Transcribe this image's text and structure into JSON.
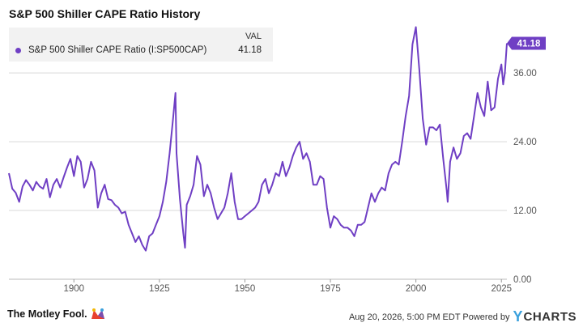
{
  "title": "S&P 500 Shiller CAPE Ratio History",
  "legend": {
    "val_header": "VAL",
    "series_name": "S&P 500 Shiller CAPE Ratio (I:SP500CAP)",
    "value": "41.18"
  },
  "footer": {
    "brand": "The Motley Fool.",
    "timestamp": "Aug 20, 2026, 5:00 PM EDT Powered by",
    "ycharts_y": "Y",
    "ycharts_text": "CHARTS"
  },
  "colors": {
    "line": "#6f3fc4",
    "grid": "#d9d9d9",
    "axis_text": "#555555"
  },
  "chart_data": {
    "type": "line",
    "title": "S&P 500 Shiller CAPE Ratio History",
    "xlim": [
      1881,
      2026.6
    ],
    "ylim": [
      0,
      44.5
    ],
    "xticks": [
      1900,
      1925,
      1950,
      1975,
      2000,
      2025
    ],
    "yticks": [
      0,
      12,
      24,
      36
    ],
    "ytick_labels": [
      "0.00",
      "12.00",
      "24.00",
      "36.00"
    ],
    "last_value_label": "41.18",
    "grid": "horizontal",
    "series": [
      {
        "name": "S&P 500 Shiller CAPE Ratio (I:SP500CAP)",
        "x": [
          1881,
          1882,
          1883,
          1884,
          1885,
          1886,
          1887,
          1888,
          1889,
          1890,
          1891,
          1892,
          1893,
          1894,
          1895,
          1896,
          1897,
          1898,
          1899,
          1900,
          1901,
          1902,
          1903,
          1904,
          1905,
          1906,
          1907,
          1908,
          1909,
          1910,
          1911,
          1912,
          1913,
          1914,
          1915,
          1916,
          1917,
          1918,
          1919,
          1920,
          1921,
          1922,
          1923,
          1924,
          1925,
          1926,
          1927,
          1928,
          1929,
          1929.7,
          1930,
          1931,
          1932,
          1932.5,
          1933,
          1934,
          1935,
          1936,
          1937,
          1938,
          1939,
          1940,
          1941,
          1942,
          1943,
          1944,
          1945,
          1946,
          1947,
          1948,
          1949,
          1950,
          1951,
          1952,
          1953,
          1954,
          1955,
          1956,
          1957,
          1958,
          1959,
          1960,
          1961,
          1962,
          1963,
          1964,
          1965,
          1966,
          1967,
          1968,
          1969,
          1970,
          1971,
          1972,
          1973,
          1974,
          1975,
          1976,
          1977,
          1978,
          1979,
          1980,
          1981,
          1982,
          1983,
          1984,
          1985,
          1986,
          1987,
          1988,
          1989,
          1990,
          1991,
          1992,
          1993,
          1994,
          1995,
          1996,
          1997,
          1998,
          1999,
          2000,
          2001,
          2002,
          2003,
          2004,
          2005,
          2006,
          2007,
          2008,
          2009,
          2009.3,
          2010,
          2011,
          2012,
          2013,
          2014,
          2015,
          2016,
          2017,
          2018,
          2019,
          2020,
          2021,
          2022,
          2023,
          2024,
          2025,
          2025.5,
          2026,
          2026.6
        ],
        "y": [
          18.5,
          15.8,
          15.1,
          13.5,
          16.2,
          17.3,
          16.5,
          15.5,
          17.0,
          16.2,
          15.8,
          17.5,
          14.3,
          16.5,
          17.5,
          16.0,
          17.8,
          19.5,
          21.0,
          18.0,
          21.5,
          20.5,
          16.0,
          17.5,
          20.5,
          19.0,
          12.5,
          15.0,
          16.5,
          14.0,
          13.8,
          13.0,
          12.5,
          11.5,
          11.8,
          9.5,
          8.0,
          6.5,
          7.5,
          6.0,
          5.0,
          7.5,
          8.0,
          9.5,
          11.0,
          13.5,
          17.0,
          22.0,
          28.0,
          32.5,
          22.0,
          14.0,
          8.0,
          5.5,
          13.0,
          14.5,
          16.5,
          21.5,
          20.0,
          14.5,
          16.5,
          15.0,
          12.5,
          10.5,
          11.5,
          12.5,
          15.0,
          18.5,
          13.5,
          10.5,
          10.5,
          11.0,
          11.5,
          12.0,
          12.5,
          13.5,
          16.5,
          17.5,
          15.0,
          16.5,
          18.5,
          18.0,
          20.5,
          18.0,
          19.5,
          21.5,
          23.0,
          24.0,
          21.0,
          22.0,
          20.5,
          16.5,
          16.5,
          18.0,
          17.5,
          12.5,
          9.0,
          11.0,
          10.5,
          9.5,
          9.0,
          9.0,
          8.5,
          7.5,
          9.5,
          9.5,
          10.0,
          12.5,
          15.0,
          13.5,
          15.0,
          16.0,
          15.5,
          18.5,
          20.0,
          20.5,
          20.0,
          24.0,
          28.5,
          32.0,
          41.0,
          44.0,
          36.5,
          28.0,
          23.5,
          26.5,
          26.5,
          26.0,
          27.0,
          21.0,
          15.5,
          13.5,
          20.5,
          23.0,
          21.0,
          22.0,
          25.0,
          25.5,
          24.5,
          28.5,
          32.5,
          30.0,
          28.5,
          34.5,
          29.5,
          30.0,
          35.0,
          37.5,
          34.0,
          36.0,
          41.18
        ]
      }
    ]
  }
}
